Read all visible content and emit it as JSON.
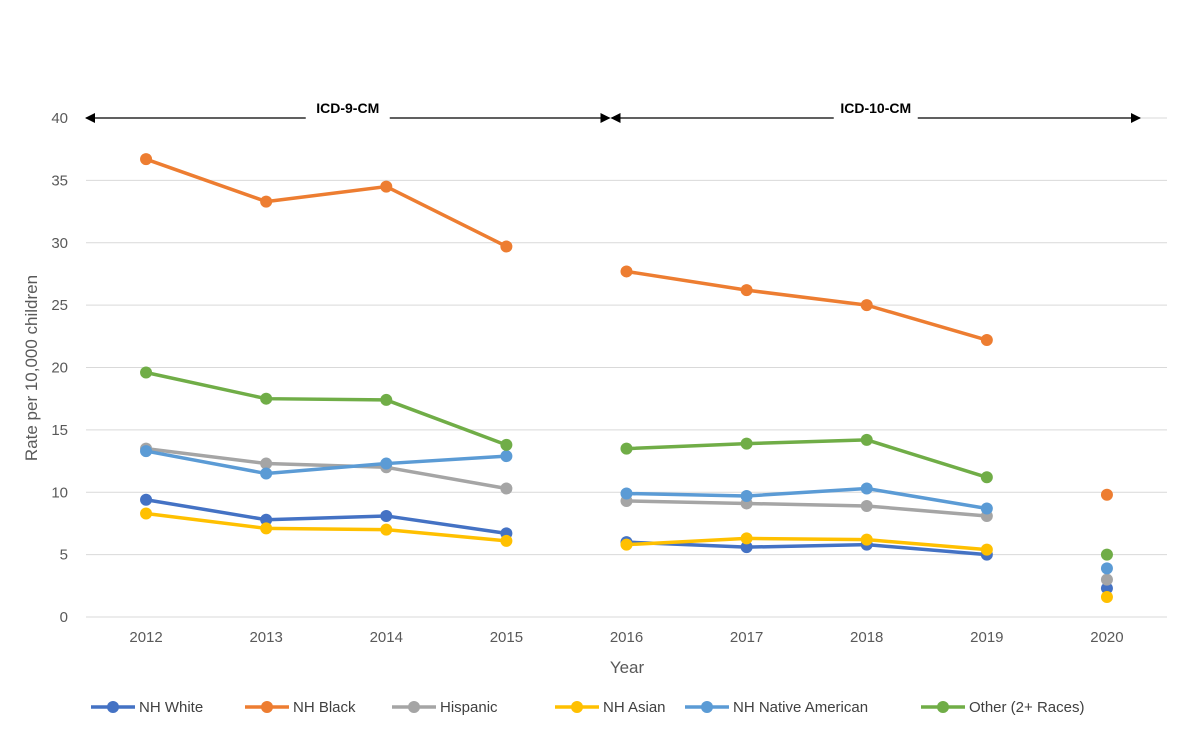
{
  "chart_data": {
    "type": "line",
    "title": "",
    "xlabel": "Year",
    "ylabel": "Rate per 10,000 children",
    "ylim": [
      0,
      40
    ],
    "yticks": [
      0,
      5,
      10,
      15,
      20,
      25,
      30,
      35,
      40
    ],
    "grid": true,
    "legend_position": "bottom",
    "categories": [
      "2012",
      "2013",
      "2014",
      "2015",
      "2016",
      "2017",
      "2018",
      "2019",
      "2020"
    ],
    "line_segments": [
      [
        0,
        3
      ],
      [
        4,
        7
      ],
      [
        8,
        8
      ]
    ],
    "annotations": [
      {
        "label": "ICD-9-CM",
        "from": "2012",
        "to": "2016"
      },
      {
        "label": "ICD-10-CM",
        "from": "2016",
        "to": "2020"
      }
    ],
    "series": [
      {
        "name": "NH White",
        "color": "#4472C4",
        "values": [
          9.4,
          7.8,
          8.1,
          6.7,
          6.0,
          5.6,
          5.8,
          5.0,
          2.3
        ]
      },
      {
        "name": "NH Black",
        "color": "#ED7D31",
        "values": [
          36.7,
          33.3,
          34.5,
          29.7,
          27.7,
          26.2,
          25.0,
          22.2,
          9.8
        ]
      },
      {
        "name": "Hispanic",
        "color": "#A5A5A5",
        "values": [
          13.5,
          12.3,
          12.0,
          10.3,
          9.3,
          9.1,
          8.9,
          8.1,
          3.0
        ]
      },
      {
        "name": "NH Asian",
        "color": "#FFC000",
        "values": [
          8.3,
          7.1,
          7.0,
          6.1,
          5.8,
          6.3,
          6.2,
          5.4,
          1.6
        ]
      },
      {
        "name": "NH Native American",
        "color": "#5B9BD5",
        "values": [
          13.3,
          11.5,
          12.3,
          12.9,
          9.9,
          9.7,
          10.3,
          8.7,
          3.9
        ]
      },
      {
        "name": "Other (2+ Races)",
        "color": "#70AD47",
        "values": [
          19.6,
          17.5,
          17.4,
          13.8,
          13.5,
          13.9,
          14.2,
          11.2,
          5.0
        ]
      }
    ]
  }
}
